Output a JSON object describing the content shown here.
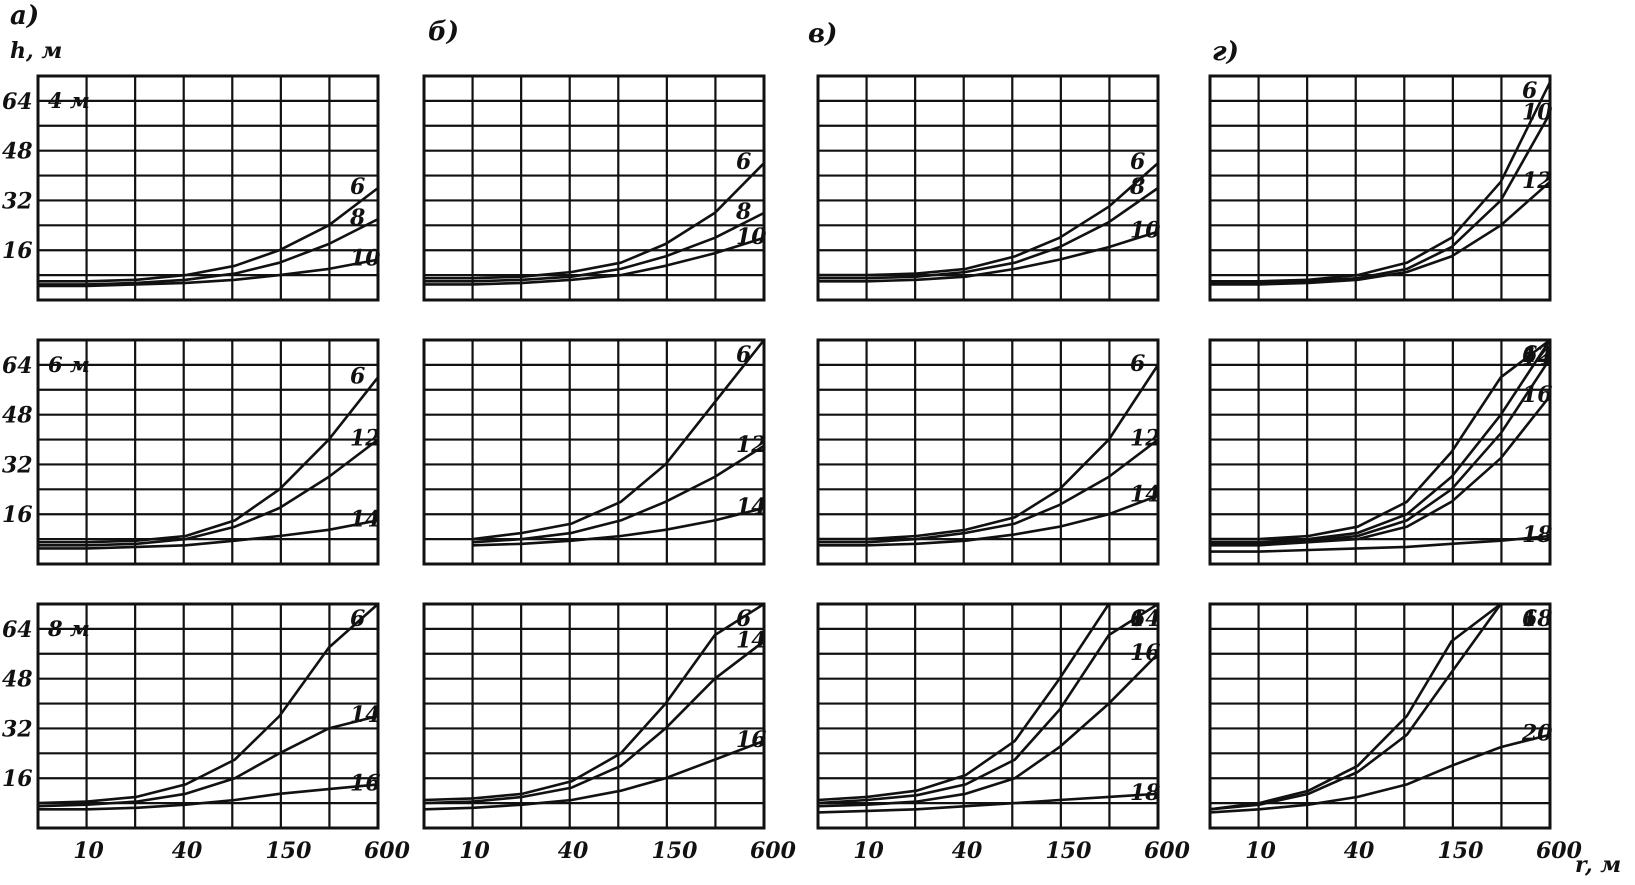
{
  "figure": {
    "y_axis_label": "h, м",
    "x_axis_label": "r, м",
    "y_ticks": [
      "16",
      "32",
      "48",
      "64"
    ],
    "x_ticks": [
      "10",
      "40",
      "150",
      "600"
    ],
    "column_titles": [
      "а)",
      "б)",
      "в)",
      "г)"
    ],
    "row_labels": [
      "4 м",
      "6 м",
      "8 м"
    ]
  },
  "chart_data": [
    {
      "type": "line",
      "column": "а)",
      "row_label": "4 м",
      "x_scale": "log",
      "ylim": [
        0,
        72
      ],
      "series": [
        {
          "name": "6",
          "x": [
            5,
            10,
            20,
            40,
            80,
            150,
            300,
            600
          ],
          "y": [
            6,
            6,
            6.5,
            8,
            11,
            16,
            24,
            36
          ]
        },
        {
          "name": "8",
          "x": [
            5,
            10,
            20,
            40,
            80,
            150,
            300,
            600
          ],
          "y": [
            5,
            5,
            5.5,
            6.5,
            8.5,
            12,
            18,
            26
          ]
        },
        {
          "name": "10",
          "x": [
            5,
            10,
            20,
            40,
            80,
            150,
            300,
            600
          ],
          "y": [
            4.5,
            4.5,
            5,
            5.5,
            6.5,
            8,
            10,
            13
          ]
        }
      ],
      "labels": [
        "6",
        "8",
        "10"
      ]
    },
    {
      "type": "line",
      "column": "б)",
      "row_label": "4 м",
      "x_scale": "log",
      "ylim": [
        0,
        72
      ],
      "series": [
        {
          "name": "6",
          "x": [
            5,
            10,
            20,
            40,
            80,
            150,
            300,
            600
          ],
          "y": [
            7,
            7,
            7.5,
            9,
            12,
            18,
            28,
            44
          ]
        },
        {
          "name": "8",
          "x": [
            5,
            10,
            20,
            40,
            80,
            150,
            300,
            600
          ],
          "y": [
            6,
            6,
            6.5,
            7.5,
            10,
            14,
            20,
            28
          ]
        },
        {
          "name": "10",
          "x": [
            5,
            10,
            20,
            40,
            80,
            150,
            300,
            600
          ],
          "y": [
            5,
            5,
            5.5,
            6.5,
            8,
            11,
            15,
            20
          ]
        }
      ],
      "labels": [
        "6",
        "8",
        "10"
      ]
    },
    {
      "type": "line",
      "column": "в)",
      "row_label": "4 м",
      "x_scale": "log",
      "ylim": [
        0,
        72
      ],
      "series": [
        {
          "name": "6",
          "x": [
            5,
            10,
            20,
            40,
            80,
            150,
            300,
            600
          ],
          "y": [
            8,
            8,
            8.5,
            10,
            14,
            20,
            30,
            44
          ]
        },
        {
          "name": "8",
          "x": [
            5,
            10,
            20,
            40,
            80,
            150,
            300,
            600
          ],
          "y": [
            7,
            7,
            7.5,
            9,
            12,
            17,
            25,
            36
          ]
        },
        {
          "name": "10",
          "x": [
            5,
            10,
            20,
            40,
            80,
            150,
            300,
            600
          ],
          "y": [
            6,
            6,
            6.5,
            7.5,
            10,
            13,
            17,
            22
          ]
        }
      ],
      "labels": [
        "6",
        "8",
        "10"
      ]
    },
    {
      "type": "line",
      "column": "г)",
      "row_label": "4 м",
      "x_scale": "log",
      "ylim": [
        0,
        72
      ],
      "series": [
        {
          "name": "6",
          "x": [
            5,
            10,
            20,
            40,
            80,
            150,
            300,
            600
          ],
          "y": [
            6,
            6,
            6.5,
            8,
            12,
            20,
            38,
            70
          ]
        },
        {
          "name": "10",
          "x": [
            5,
            10,
            20,
            40,
            80,
            150,
            300,
            600
          ],
          "y": [
            5.5,
            5.5,
            6,
            7,
            10,
            17,
            32,
            60
          ]
        },
        {
          "name": "12",
          "x": [
            5,
            10,
            20,
            40,
            80,
            150,
            300,
            600
          ],
          "y": [
            5,
            5,
            5.5,
            6.5,
            9,
            14,
            24,
            38
          ]
        }
      ],
      "labels": [
        "6",
        "10",
        "12"
      ]
    },
    {
      "type": "line",
      "column": "а)",
      "row_label": "6 м",
      "x_scale": "log",
      "ylim": [
        0,
        72
      ],
      "series": [
        {
          "name": "6",
          "x": [
            5,
            10,
            20,
            40,
            80,
            150,
            300,
            600
          ],
          "y": [
            7,
            7,
            7.5,
            9,
            14,
            24,
            40,
            60
          ]
        },
        {
          "name": "12",
          "x": [
            5,
            10,
            20,
            40,
            80,
            150,
            300,
            600
          ],
          "y": [
            6,
            6,
            6.5,
            8,
            12,
            18,
            28,
            40
          ]
        },
        {
          "name": "14",
          "x": [
            5,
            10,
            20,
            40,
            80,
            150,
            300,
            600
          ],
          "y": [
            5,
            5,
            5.5,
            6,
            7.5,
            9,
            11,
            14
          ]
        }
      ],
      "labels": [
        "6",
        "12",
        "14"
      ]
    },
    {
      "type": "line",
      "column": "б)",
      "row_label": "6 м",
      "x_scale": "log",
      "ylim": [
        0,
        72
      ],
      "series": [
        {
          "name": "6",
          "x": [
            10,
            20,
            40,
            80,
            150,
            300,
            600
          ],
          "y": [
            8,
            10,
            13,
            20,
            32,
            52,
            72
          ]
        },
        {
          "name": "12",
          "x": [
            10,
            20,
            40,
            80,
            150,
            300,
            600
          ],
          "y": [
            7,
            8,
            10,
            14,
            20,
            28,
            38
          ]
        },
        {
          "name": "14",
          "x": [
            10,
            20,
            40,
            80,
            150,
            300,
            600
          ],
          "y": [
            6,
            6.5,
            7.5,
            9,
            11,
            14,
            18
          ]
        }
      ],
      "labels": [
        "6",
        "12",
        "14"
      ]
    },
    {
      "type": "line",
      "column": "в)",
      "row_label": "6 м",
      "x_scale": "log",
      "ylim": [
        0,
        72
      ],
      "series": [
        {
          "name": "6",
          "x": [
            5,
            10,
            20,
            40,
            80,
            150,
            300,
            600
          ],
          "y": [
            8,
            8,
            9,
            11,
            15,
            24,
            40,
            64
          ]
        },
        {
          "name": "12",
          "x": [
            5,
            10,
            20,
            40,
            80,
            150,
            300,
            600
          ],
          "y": [
            7,
            7,
            8,
            10,
            13,
            19,
            28,
            40
          ]
        },
        {
          "name": "14",
          "x": [
            5,
            10,
            20,
            40,
            80,
            150,
            300,
            600
          ],
          "y": [
            6,
            6,
            6.5,
            7.5,
            9.5,
            12,
            16,
            22
          ]
        }
      ],
      "labels": [
        "6",
        "12",
        "14"
      ]
    },
    {
      "type": "line",
      "column": "г)",
      "row_label": "6 м",
      "x_scale": "log",
      "ylim": [
        0,
        72
      ],
      "series": [
        {
          "name": "6",
          "x": [
            5,
            10,
            20,
            40,
            80,
            150,
            300,
            600
          ],
          "y": [
            8,
            8,
            9,
            12,
            20,
            36,
            60,
            72
          ]
        },
        {
          "name": "12",
          "x": [
            5,
            10,
            20,
            40,
            80,
            150,
            300,
            600
          ],
          "y": [
            7,
            7,
            8,
            10,
            16,
            28,
            48,
            72
          ]
        },
        {
          "name": "14",
          "x": [
            5,
            10,
            20,
            40,
            80,
            150,
            300,
            600
          ],
          "y": [
            6.5,
            6.5,
            7.5,
            9,
            14,
            24,
            42,
            66
          ]
        },
        {
          "name": "16",
          "x": [
            5,
            10,
            20,
            40,
            80,
            150,
            300,
            600
          ],
          "y": [
            6,
            6,
            7,
            8,
            12,
            20,
            34,
            54
          ]
        },
        {
          "name": "18",
          "x": [
            5,
            10,
            20,
            40,
            80,
            150,
            300,
            600
          ],
          "y": [
            4,
            4,
            4.5,
            5,
            5.5,
            6.5,
            7.5,
            9
          ]
        }
      ],
      "labels": [
        "6",
        "12",
        "14",
        "16",
        "18"
      ]
    },
    {
      "type": "line",
      "column": "а)",
      "row_label": "8 м",
      "x_scale": "log",
      "ylim": [
        0,
        72
      ],
      "series": [
        {
          "name": "6",
          "x": [
            5,
            10,
            20,
            40,
            80,
            150,
            300,
            600
          ],
          "y": [
            8,
            8.5,
            10,
            14,
            22,
            36,
            58,
            72
          ]
        },
        {
          "name": "14",
          "x": [
            5,
            10,
            20,
            40,
            80,
            150,
            300,
            600
          ],
          "y": [
            7,
            7.5,
            8.5,
            11,
            16,
            24,
            32,
            36
          ]
        },
        {
          "name": "16",
          "x": [
            5,
            10,
            20,
            40,
            80,
            150,
            300,
            600
          ],
          "y": [
            6,
            6,
            6.5,
            7.5,
            9,
            11,
            12.5,
            14
          ]
        }
      ],
      "labels": [
        "6",
        "14",
        "16"
      ]
    },
    {
      "type": "line",
      "column": "б)",
      "row_label": "8 м",
      "x_scale": "log",
      "ylim": [
        0,
        72
      ],
      "series": [
        {
          "name": "6",
          "x": [
            5,
            10,
            20,
            40,
            80,
            150,
            300,
            600
          ],
          "y": [
            9,
            9.5,
            11,
            15,
            24,
            40,
            62,
            72
          ]
        },
        {
          "name": "14",
          "x": [
            5,
            10,
            20,
            40,
            80,
            150,
            300,
            600
          ],
          "y": [
            8,
            8.5,
            10,
            13,
            20,
            32,
            48,
            60
          ]
        },
        {
          "name": "16",
          "x": [
            5,
            10,
            20,
            40,
            80,
            150,
            300,
            600
          ],
          "y": [
            6,
            6.5,
            7.5,
            9,
            12,
            16,
            22,
            28
          ]
        }
      ],
      "labels": [
        "6",
        "14",
        "16"
      ]
    },
    {
      "type": "line",
      "column": "в)",
      "row_label": "8 м",
      "x_scale": "log",
      "ylim": [
        0,
        72
      ],
      "series": [
        {
          "name": "6",
          "x": [
            5,
            10,
            20,
            40,
            80,
            150,
            300,
            600
          ],
          "y": [
            9,
            10,
            12,
            17,
            28,
            48,
            72,
            72
          ]
        },
        {
          "name": "14",
          "x": [
            5,
            10,
            20,
            40,
            80,
            150,
            300,
            600
          ],
          "y": [
            8,
            9,
            10.5,
            14,
            22,
            38,
            62,
            72
          ]
        },
        {
          "name": "16",
          "x": [
            5,
            10,
            20,
            40,
            80,
            150,
            300,
            600
          ],
          "y": [
            7,
            7.5,
            8.5,
            11,
            16,
            26,
            40,
            56
          ]
        },
        {
          "name": "18",
          "x": [
            5,
            10,
            20,
            40,
            80,
            150,
            300,
            600
          ],
          "y": [
            5,
            5.5,
            6,
            7,
            8,
            9,
            10,
            11
          ]
        }
      ],
      "labels": [
        "6",
        "14",
        "16",
        "18"
      ]
    },
    {
      "type": "line",
      "column": "г)",
      "row_label": "8 м",
      "x_scale": "log",
      "ylim": [
        0,
        72
      ],
      "series": [
        {
          "name": "6",
          "x": [
            5,
            10,
            20,
            40,
            80,
            150,
            300,
            600
          ],
          "y": [
            6,
            8,
            12,
            20,
            36,
            60,
            72,
            72
          ]
        },
        {
          "name": "18",
          "x": [
            5,
            10,
            20,
            40,
            80,
            150,
            300,
            600
          ],
          "y": [
            6,
            7.5,
            11,
            18,
            30,
            50,
            72,
            72
          ]
        },
        {
          "name": "20",
          "x": [
            5,
            10,
            20,
            40,
            80,
            150,
            300,
            600
          ],
          "y": [
            5,
            6,
            7.5,
            10,
            14,
            20,
            26,
            30
          ]
        }
      ],
      "labels": [
        "6",
        "18",
        "20"
      ]
    }
  ]
}
